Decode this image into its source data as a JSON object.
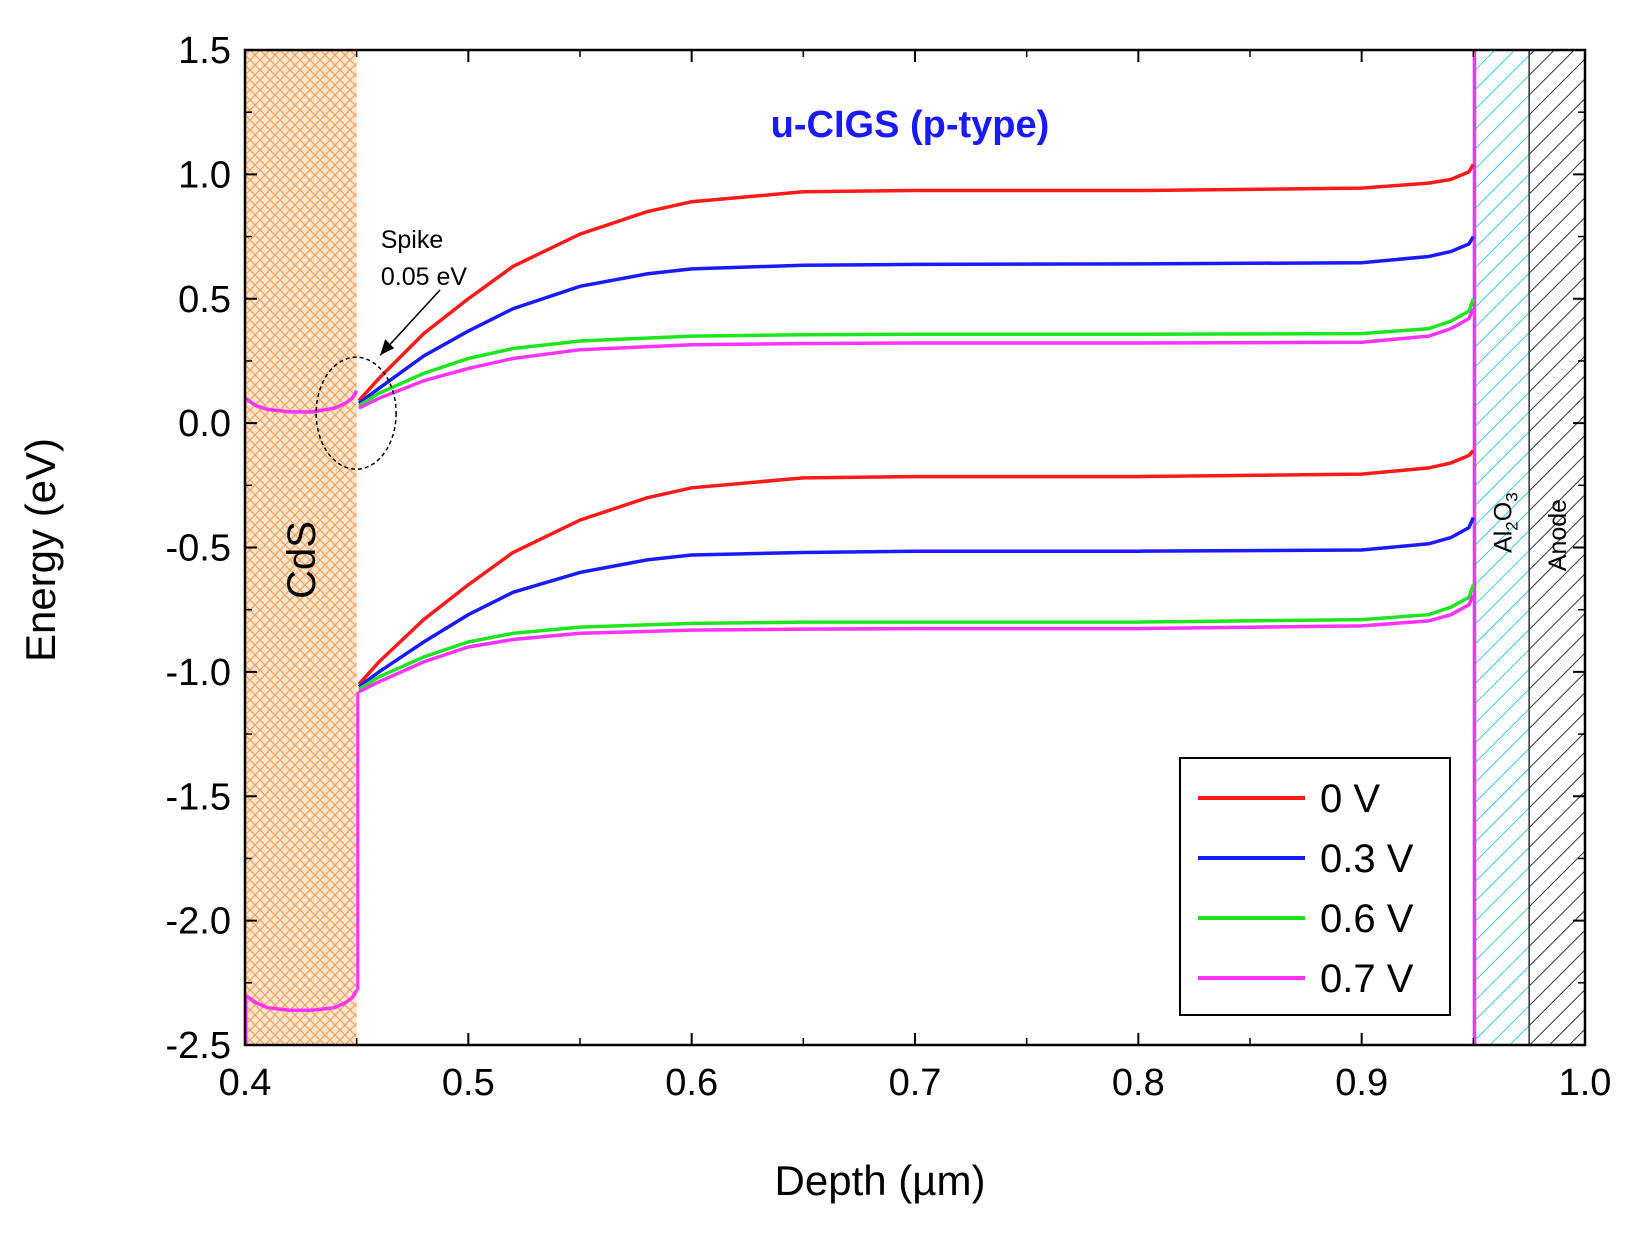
{
  "chart_data": {
    "type": "line",
    "title": "u-CIGS (p-type)",
    "title_color": "#1a1aff",
    "xlabel": "Depth (µm)",
    "ylabel": "Energy (eV)",
    "xlim": [
      0.4,
      1.0
    ],
    "ylim": [
      -2.5,
      1.5
    ],
    "x_ticks": [
      "0.4",
      "0.5",
      "0.6",
      "0.7",
      "0.8",
      "0.9",
      "1.0"
    ],
    "y_ticks": [
      "1.5",
      "1.0",
      "0.5",
      "0.0",
      "-0.5",
      "-1.0",
      "-1.5",
      "-2.0",
      "-2.5"
    ],
    "grid": false,
    "legend_position": "bottom-right",
    "regions": [
      {
        "label": "CdS",
        "x_start": 0.4,
        "x_end": 0.45,
        "color": "#f5a15a",
        "pattern": "crosshatch"
      },
      {
        "label_main": "Al",
        "label_sub1": "2",
        "label_mid": "O",
        "label_sub2": "3",
        "x_start": 0.951,
        "x_end": 0.975,
        "color": "#3fc6e6",
        "pattern": "diagonal"
      },
      {
        "label": "Anode",
        "x_start": 0.975,
        "x_end": 1.0,
        "color": "#333333",
        "pattern": "diagonal"
      }
    ],
    "annotation": {
      "line1": "Spike",
      "line2": "0.05 eV",
      "x": 0.452,
      "y": 0.08
    },
    "cds_bands": {
      "conduction": [
        [
          0.4,
          0.1
        ],
        [
          0.405,
          0.07
        ],
        [
          0.41,
          0.055
        ],
        [
          0.42,
          0.045
        ],
        [
          0.43,
          0.045
        ],
        [
          0.44,
          0.06
        ],
        [
          0.445,
          0.08
        ],
        [
          0.448,
          0.1
        ],
        [
          0.45,
          0.13
        ]
      ],
      "valence": [
        [
          0.4,
          -2.3
        ],
        [
          0.405,
          -2.33
        ],
        [
          0.41,
          -2.35
        ],
        [
          0.42,
          -2.36
        ],
        [
          0.43,
          -2.36
        ],
        [
          0.44,
          -2.35
        ],
        [
          0.445,
          -2.33
        ],
        [
          0.448,
          -2.31
        ],
        [
          0.45,
          -2.28
        ]
      ]
    },
    "series": [
      {
        "name": "0 V",
        "color": "#ff1a1a",
        "conduction": [
          [
            0.451,
            0.09
          ],
          [
            0.46,
            0.18
          ],
          [
            0.48,
            0.36
          ],
          [
            0.5,
            0.5
          ],
          [
            0.52,
            0.63
          ],
          [
            0.55,
            0.76
          ],
          [
            0.58,
            0.85
          ],
          [
            0.6,
            0.89
          ],
          [
            0.65,
            0.93
          ],
          [
            0.7,
            0.935
          ],
          [
            0.8,
            0.935
          ],
          [
            0.9,
            0.945
          ],
          [
            0.93,
            0.965
          ],
          [
            0.94,
            0.98
          ],
          [
            0.948,
            1.01
          ],
          [
            0.95,
            1.04
          ]
        ],
        "valence": [
          [
            0.451,
            -1.05
          ],
          [
            0.46,
            -0.96
          ],
          [
            0.48,
            -0.79
          ],
          [
            0.5,
            -0.65
          ],
          [
            0.52,
            -0.52
          ],
          [
            0.55,
            -0.39
          ],
          [
            0.58,
            -0.3
          ],
          [
            0.6,
            -0.26
          ],
          [
            0.65,
            -0.22
          ],
          [
            0.7,
            -0.215
          ],
          [
            0.8,
            -0.215
          ],
          [
            0.9,
            -0.205
          ],
          [
            0.93,
            -0.18
          ],
          [
            0.94,
            -0.16
          ],
          [
            0.948,
            -0.13
          ],
          [
            0.95,
            -0.11
          ]
        ]
      },
      {
        "name": "0.3 V",
        "color": "#1a1aff",
        "conduction": [
          [
            0.451,
            0.08
          ],
          [
            0.46,
            0.14
          ],
          [
            0.48,
            0.27
          ],
          [
            0.5,
            0.37
          ],
          [
            0.52,
            0.46
          ],
          [
            0.55,
            0.55
          ],
          [
            0.58,
            0.6
          ],
          [
            0.6,
            0.62
          ],
          [
            0.65,
            0.635
          ],
          [
            0.7,
            0.638
          ],
          [
            0.8,
            0.64
          ],
          [
            0.9,
            0.645
          ],
          [
            0.93,
            0.67
          ],
          [
            0.94,
            0.69
          ],
          [
            0.948,
            0.72
          ],
          [
            0.95,
            0.75
          ]
        ],
        "valence": [
          [
            0.451,
            -1.06
          ],
          [
            0.46,
            -1.0
          ],
          [
            0.48,
            -0.88
          ],
          [
            0.5,
            -0.77
          ],
          [
            0.52,
            -0.68
          ],
          [
            0.55,
            -0.6
          ],
          [
            0.58,
            -0.55
          ],
          [
            0.6,
            -0.53
          ],
          [
            0.65,
            -0.52
          ],
          [
            0.7,
            -0.515
          ],
          [
            0.8,
            -0.515
          ],
          [
            0.9,
            -0.51
          ],
          [
            0.93,
            -0.485
          ],
          [
            0.94,
            -0.46
          ],
          [
            0.948,
            -0.42
          ],
          [
            0.95,
            -0.38
          ]
        ]
      },
      {
        "name": "0.6 V",
        "color": "#1ee61e",
        "conduction": [
          [
            0.451,
            0.07
          ],
          [
            0.46,
            0.12
          ],
          [
            0.48,
            0.2
          ],
          [
            0.5,
            0.26
          ],
          [
            0.52,
            0.3
          ],
          [
            0.55,
            0.33
          ],
          [
            0.6,
            0.35
          ],
          [
            0.65,
            0.355
          ],
          [
            0.7,
            0.357
          ],
          [
            0.8,
            0.357
          ],
          [
            0.9,
            0.36
          ],
          [
            0.93,
            0.38
          ],
          [
            0.94,
            0.41
          ],
          [
            0.948,
            0.45
          ],
          [
            0.95,
            0.5
          ]
        ],
        "valence": [
          [
            0.451,
            -1.07
          ],
          [
            0.46,
            -1.02
          ],
          [
            0.48,
            -0.94
          ],
          [
            0.5,
            -0.88
          ],
          [
            0.52,
            -0.845
          ],
          [
            0.55,
            -0.82
          ],
          [
            0.6,
            -0.805
          ],
          [
            0.65,
            -0.8
          ],
          [
            0.7,
            -0.8
          ],
          [
            0.8,
            -0.8
          ],
          [
            0.9,
            -0.79
          ],
          [
            0.93,
            -0.77
          ],
          [
            0.94,
            -0.74
          ],
          [
            0.948,
            -0.7
          ],
          [
            0.95,
            -0.65
          ]
        ]
      },
      {
        "name": "0.7 V",
        "color": "#ff33ff",
        "conduction": [
          [
            0.451,
            0.06
          ],
          [
            0.46,
            0.1
          ],
          [
            0.48,
            0.17
          ],
          [
            0.5,
            0.22
          ],
          [
            0.52,
            0.26
          ],
          [
            0.55,
            0.295
          ],
          [
            0.6,
            0.315
          ],
          [
            0.65,
            0.32
          ],
          [
            0.7,
            0.322
          ],
          [
            0.8,
            0.322
          ],
          [
            0.9,
            0.325
          ],
          [
            0.93,
            0.35
          ],
          [
            0.94,
            0.38
          ],
          [
            0.948,
            0.42
          ],
          [
            0.95,
            0.46
          ]
        ],
        "valence": [
          [
            0.451,
            -1.08
          ],
          [
            0.46,
            -1.04
          ],
          [
            0.48,
            -0.96
          ],
          [
            0.5,
            -0.9
          ],
          [
            0.52,
            -0.87
          ],
          [
            0.55,
            -0.845
          ],
          [
            0.6,
            -0.832
          ],
          [
            0.65,
            -0.828
          ],
          [
            0.7,
            -0.826
          ],
          [
            0.8,
            -0.826
          ],
          [
            0.9,
            -0.815
          ],
          [
            0.93,
            -0.795
          ],
          [
            0.94,
            -0.77
          ],
          [
            0.948,
            -0.73
          ],
          [
            0.95,
            -0.69
          ]
        ]
      }
    ]
  }
}
